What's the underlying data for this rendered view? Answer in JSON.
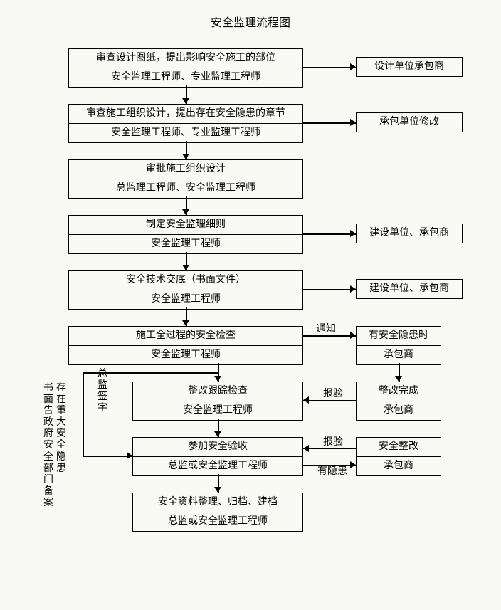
{
  "title": "安全监理流程图",
  "layout": {
    "mainX": 96,
    "mainW": 330,
    "sideX": 500,
    "sideW6": 120,
    "sideW8": 150,
    "rowH2": 52,
    "gap": 26,
    "background_color": "#fafaf5",
    "border_color": "#000000",
    "font_color": "#000000",
    "font_size": 14,
    "title_font_size": 16
  },
  "main": [
    {
      "top": "审查设计图纸，提出影响安全施工的部位",
      "bot": "安全监理工程师、专业监理工程师"
    },
    {
      "top": "审查施工组织设计，提出存在安全隐患的章节",
      "bot": "安全监理工程师、专业监理工程师"
    },
    {
      "top": "审批施工组织设计",
      "bot": "总监理工程师、安全监理工程师"
    },
    {
      "top": "制定安全监理细则",
      "bot": "安全监理工程师"
    },
    {
      "top": "安全技术交底（书面文件）",
      "bot": "安全监理工程师"
    },
    {
      "top": "施工全过程的安全检查",
      "bot": "安全监理工程师"
    },
    {
      "top": "整改跟踪检查",
      "bot": "安全监理工程师"
    },
    {
      "top": "参加安全验收",
      "bot": "总监或安全监理工程师"
    },
    {
      "top": "安全资料整理、归档、建档",
      "bot": "总监或安全监理工程师"
    }
  ],
  "side": {
    "s1": "设计单位承包商",
    "s2": "承包单位修改",
    "s4": "建设单位、承包商",
    "s5": "建设单位、承包商",
    "s6": {
      "top": "有安全隐患时",
      "bot": "承包商"
    },
    "s7a": {
      "top": "整改完成",
      "bot": "承包商"
    },
    "s8a": {
      "top": "安全整改",
      "bot": "承包商"
    }
  },
  "edges": {
    "e6": "通知",
    "e7": "报验",
    "e8a": "报验",
    "e8b": "有隐患"
  },
  "sidenote": {
    "col1": "存在重大安全隐患",
    "col2": "总监签字",
    "col3": "书面告政府安全部门备案"
  }
}
